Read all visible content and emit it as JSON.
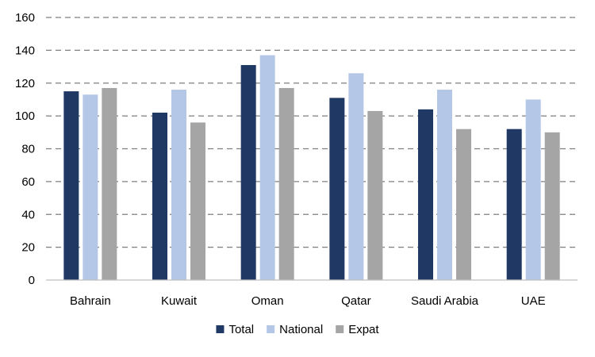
{
  "chart_data": {
    "type": "bar",
    "title": "",
    "xlabel": "",
    "ylabel": "",
    "categories": [
      "Bahrain",
      "Kuwait",
      "Oman",
      "Qatar",
      "Saudi Arabia",
      "UAE"
    ],
    "series": [
      {
        "name": "Total",
        "color": "#1f3864",
        "values": [
          115,
          102,
          131,
          111,
          104,
          92
        ]
      },
      {
        "name": "National",
        "color": "#b4c7e7",
        "values": [
          113,
          116,
          137,
          126,
          116,
          110
        ]
      },
      {
        "name": "Expat",
        "color": "#a5a5a5",
        "values": [
          117,
          96,
          117,
          103,
          92,
          90
        ]
      }
    ],
    "ylim": [
      0,
      160
    ],
    "yticks": [
      0,
      20,
      40,
      60,
      80,
      100,
      120,
      140,
      160
    ],
    "grid": "dashed horizontal",
    "legend": "bottom"
  }
}
